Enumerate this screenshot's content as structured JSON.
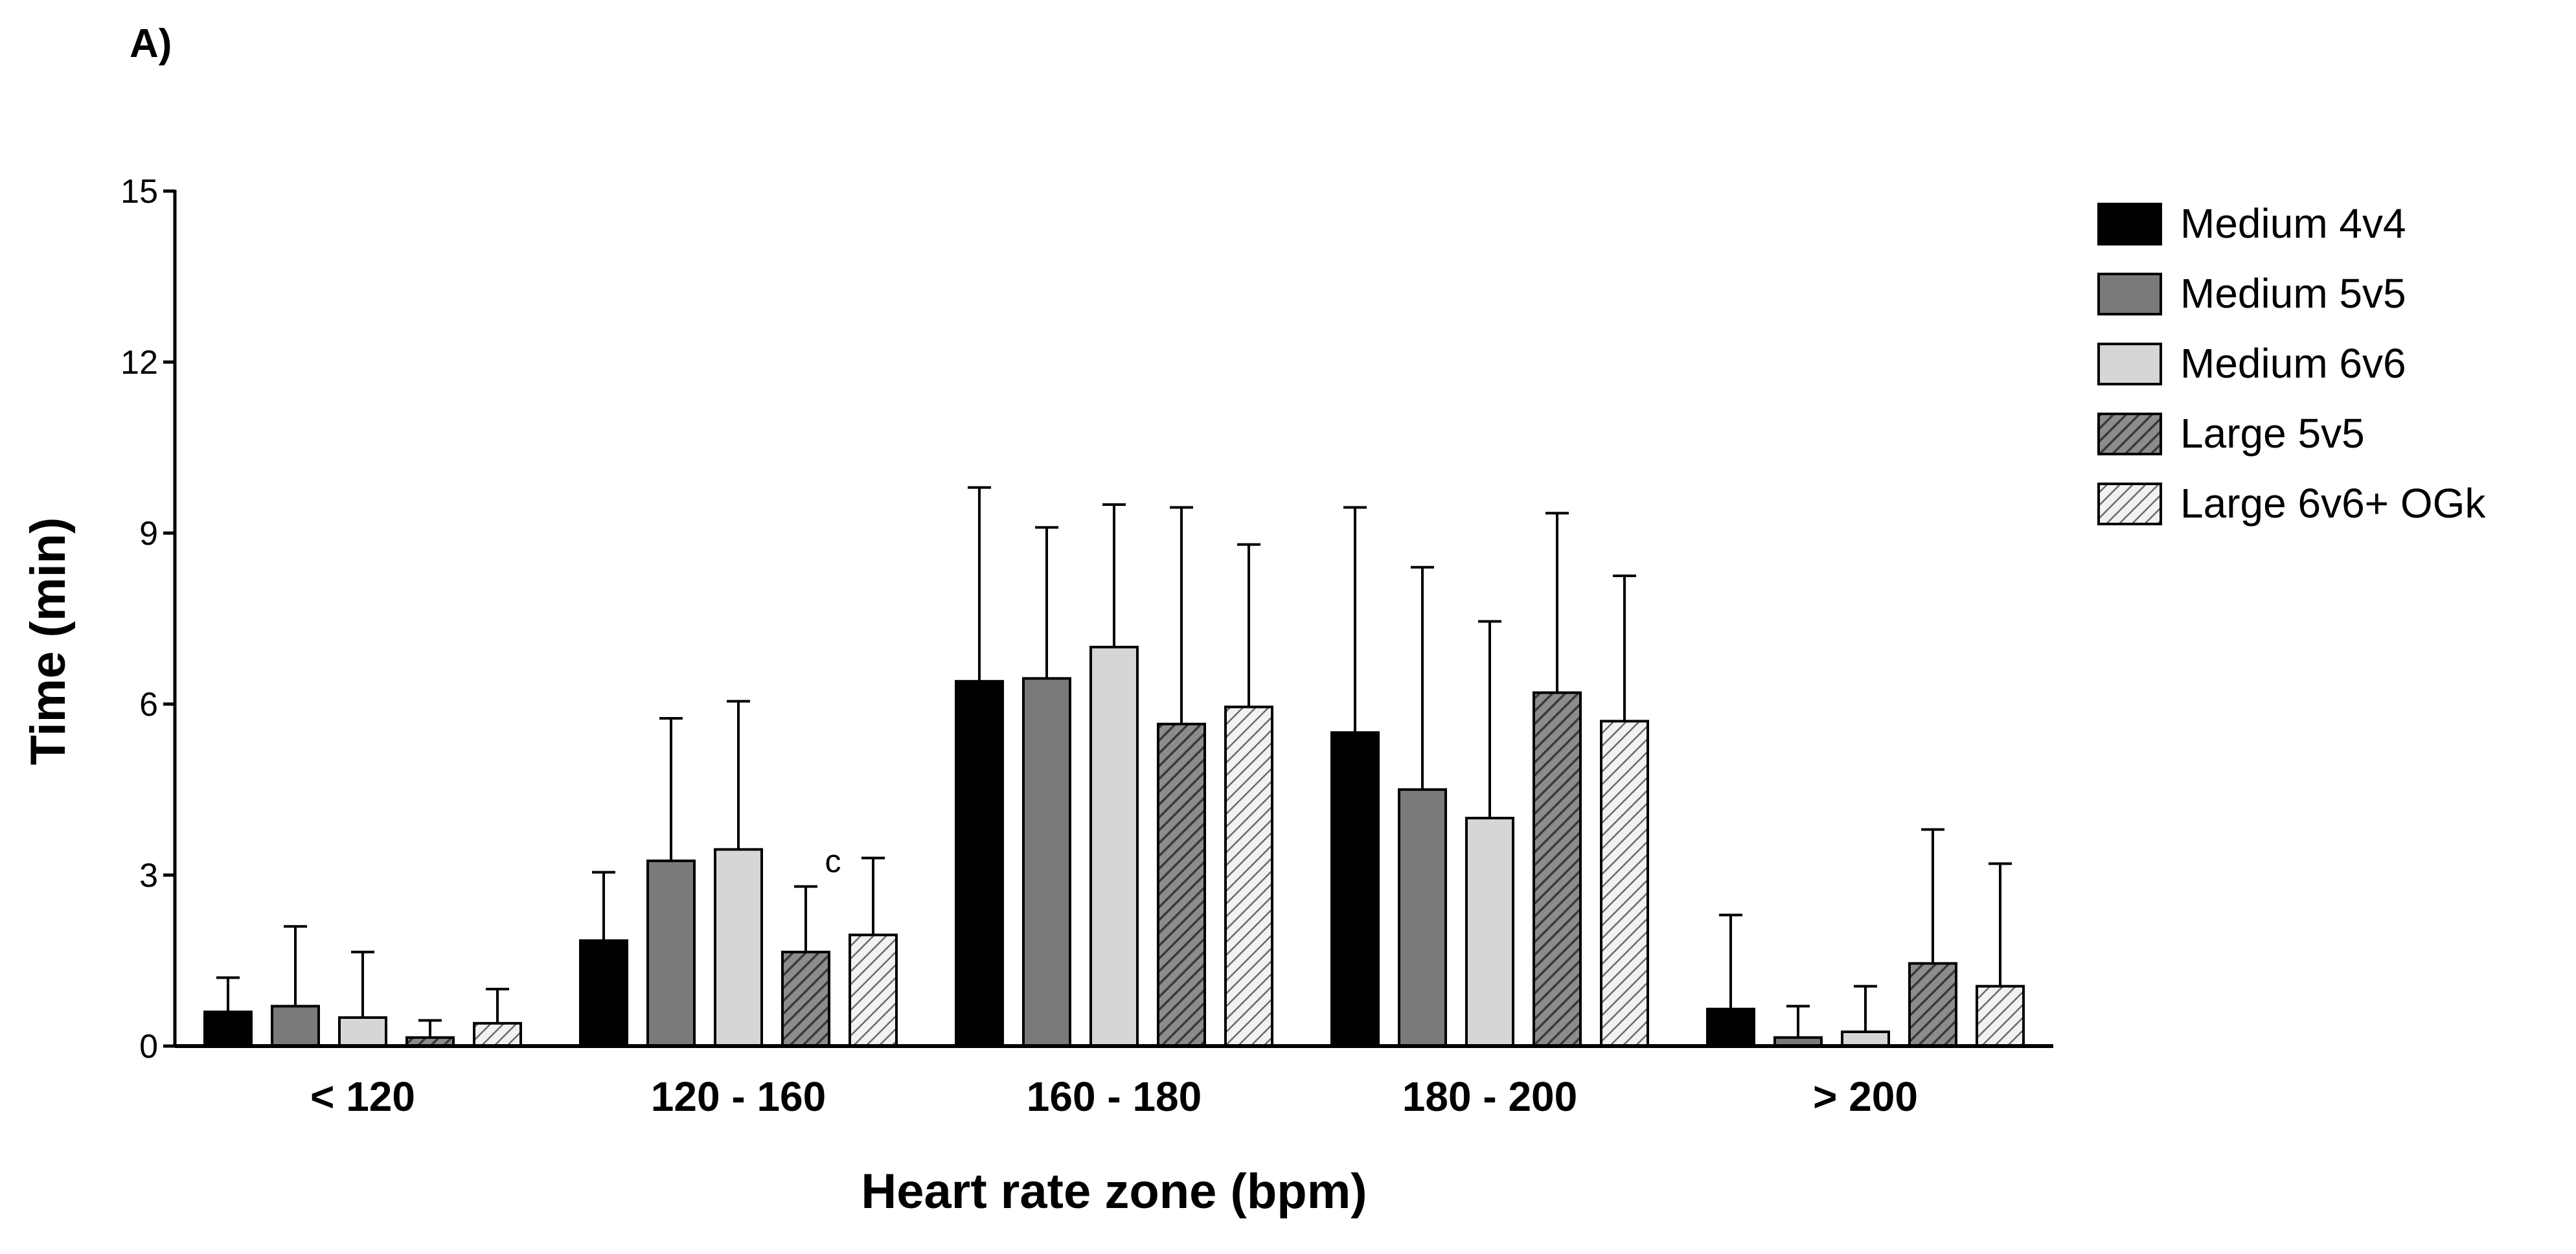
{
  "panel_label": "A)",
  "chart_data": {
    "type": "bar",
    "title": "",
    "xlabel": "Heart rate zone (bpm)",
    "ylabel": "Time (min)",
    "ylim": [
      0,
      15
    ],
    "yticks": [
      0,
      3,
      6,
      9,
      12,
      15
    ],
    "categories": [
      "< 120",
      "120 - 160",
      "160 - 180",
      "180 - 200",
      "> 200"
    ],
    "legend_position": "top-right",
    "series": [
      {
        "name": "Medium 4v4",
        "fill": "#000000",
        "pattern": "solid",
        "values": [
          0.6,
          1.85,
          6.4,
          5.5,
          0.65
        ],
        "errors": [
          0.6,
          1.2,
          3.4,
          3.95,
          1.65
        ]
      },
      {
        "name": "Medium 5v5",
        "fill": "#7a7a7a",
        "pattern": "solid",
        "values": [
          0.7,
          3.25,
          6.45,
          4.5,
          0.15
        ],
        "errors": [
          1.4,
          2.5,
          2.65,
          3.9,
          0.55
        ]
      },
      {
        "name": "Medium 6v6",
        "fill": "#d6d6d6",
        "pattern": "solid",
        "values": [
          0.5,
          3.45,
          7.0,
          4.0,
          0.25
        ],
        "errors": [
          1.15,
          2.6,
          2.5,
          3.45,
          0.8
        ]
      },
      {
        "name": "Large 5v5",
        "fill": "#8c8c8c",
        "pattern": "hatch-dense",
        "values": [
          0.15,
          1.65,
          5.65,
          6.2,
          1.45
        ],
        "errors": [
          0.3,
          1.15,
          3.8,
          3.15,
          2.35
        ]
      },
      {
        "name": "Large 6v6+ OGk",
        "fill": "#e6e6e6",
        "pattern": "hatch-light",
        "values": [
          0.4,
          1.95,
          5.95,
          5.7,
          1.05
        ],
        "errors": [
          0.6,
          1.35,
          2.85,
          2.55,
          2.15
        ]
      }
    ],
    "annotations": [
      {
        "text": "c",
        "category": "120 - 160",
        "series": "Large 5v5"
      }
    ]
  }
}
